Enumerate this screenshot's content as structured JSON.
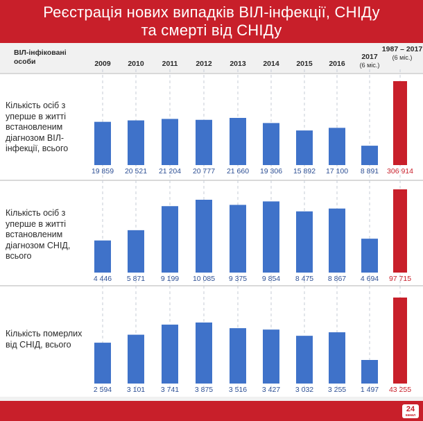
{
  "header": {
    "title_line1": "Реєстрація нових випадків ВІЛ-інфекції, СНІДу",
    "title_line2": "та смерті від СНІДу"
  },
  "columns_header": {
    "corner_label": "ВІЛ-інфіковані особи",
    "years": [
      {
        "label": "2009",
        "sub": ""
      },
      {
        "label": "2010",
        "sub": ""
      },
      {
        "label": "2011",
        "sub": ""
      },
      {
        "label": "2012",
        "sub": ""
      },
      {
        "label": "2013",
        "sub": ""
      },
      {
        "label": "2014",
        "sub": ""
      },
      {
        "label": "2015",
        "sub": ""
      },
      {
        "label": "2016",
        "sub": ""
      },
      {
        "label": "2017",
        "sub": "(6 міс.)"
      },
      {
        "label": "1987 – 2017",
        "sub": "(6 міс.)"
      }
    ]
  },
  "colors": {
    "header_red": "#c81f2a",
    "bar_blue": "#3f72c9",
    "bar_red": "#c81f2a",
    "value_blue": "#2d4f94",
    "value_red": "#c81f2a"
  },
  "logo": {
    "text": "24",
    "subtext": "канал"
  },
  "chart_data": [
    {
      "type": "bar",
      "row_label": "Кількість осіб з уперше в житті встановленим діагнозом ВІЛ-інфекції, всього",
      "categories": [
        "2009",
        "2010",
        "2011",
        "2012",
        "2013",
        "2014",
        "2015",
        "2016",
        "2017 (6 міс.)",
        "1987 – 2017 (6 міс.)"
      ],
      "values": [
        19859,
        20521,
        21204,
        20777,
        21660,
        19306,
        15892,
        17100,
        8891,
        306914
      ],
      "value_labels": [
        "19 859",
        "20 521",
        "21 204",
        "20 777",
        "21 660",
        "19 306",
        "15 892",
        "17 100",
        "8 891",
        "306 914"
      ],
      "highlight_last": true
    },
    {
      "type": "bar",
      "row_label": "Кількість осіб з уперше в житті встановленим діагнозом СНІД, всього",
      "categories": [
        "2009",
        "2010",
        "2011",
        "2012",
        "2013",
        "2014",
        "2015",
        "2016",
        "2017 (6 міс.)",
        "1987 – 2017 (6 міс.)"
      ],
      "values": [
        4446,
        5871,
        9199,
        10085,
        9375,
        9854,
        8475,
        8867,
        4694,
        97715
      ],
      "value_labels": [
        "4 446",
        "5 871",
        "9 199",
        "10 085",
        "9 375",
        "9 854",
        "8 475",
        "8 867",
        "4 694",
        "97 715"
      ],
      "highlight_last": true
    },
    {
      "type": "bar",
      "row_label": "Кількість померлих від СНІД, всього",
      "categories": [
        "2009",
        "2010",
        "2011",
        "2012",
        "2013",
        "2014",
        "2015",
        "2016",
        "2017 (6 міс.)",
        "1987 – 2017 (6 міс.)"
      ],
      "values": [
        2594,
        3101,
        3741,
        3875,
        3516,
        3427,
        3032,
        3255,
        1497,
        43255
      ],
      "value_labels": [
        "2 594",
        "3 101",
        "3 741",
        "3 875",
        "3 516",
        "3 427",
        "3 032",
        "3 255",
        "1 497",
        "43 255"
      ],
      "highlight_last": true
    }
  ]
}
